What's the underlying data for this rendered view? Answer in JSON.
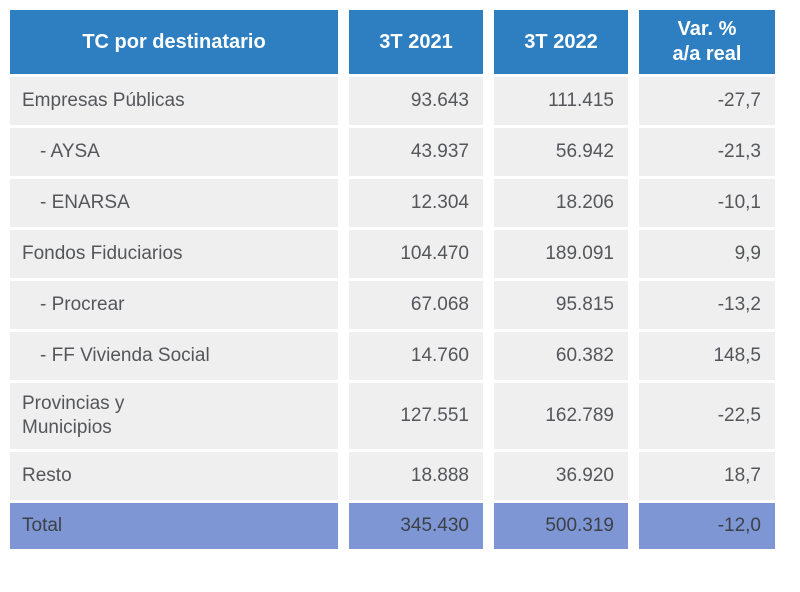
{
  "chart_data": {
    "type": "table",
    "title": "TC por destinatario",
    "columns": [
      "TC por destinatario",
      "3T 2021",
      "3T 2022",
      "Var. %\na/a real"
    ],
    "rows": [
      {
        "label": "Empresas Públicas",
        "indent": false,
        "y2021": "93.643",
        "y2022": "111.415",
        "var": "-27,7"
      },
      {
        "label": "- AYSA",
        "indent": true,
        "y2021": "43.937",
        "y2022": "56.942",
        "var": "-21,3"
      },
      {
        "label": "- ENARSA",
        "indent": true,
        "y2021": "12.304",
        "y2022": "18.206",
        "var": "-10,1"
      },
      {
        "label": "Fondos Fiduciarios",
        "indent": false,
        "y2021": "104.470",
        "y2022": "189.091",
        "var": "9,9"
      },
      {
        "label": "- Procrear",
        "indent": true,
        "y2021": "67.068",
        "y2022": "95.815",
        "var": "-13,2"
      },
      {
        "label": "- FF Vivienda Social",
        "indent": true,
        "y2021": "14.760",
        "y2022": "60.382",
        "var": "148,5"
      },
      {
        "label": "Provincias y\nMunicipios",
        "indent": false,
        "y2021": "127.551",
        "y2022": "162.789",
        "var": "-22,5"
      },
      {
        "label": "Resto",
        "indent": false,
        "y2021": "18.888",
        "y2022": "36.920",
        "var": "18,7"
      }
    ],
    "total": {
      "label": "Total",
      "y2021": "345.430",
      "y2022": "500.319",
      "var": "-12,0"
    },
    "layout": {
      "grid": "off",
      "legend": "none"
    }
  },
  "colors": {
    "header_bg": "#2d7fc1",
    "header_text": "#ffffff",
    "row_bg": "#efefef",
    "total_bg": "#7e96d4",
    "body_text": "#55565a"
  }
}
